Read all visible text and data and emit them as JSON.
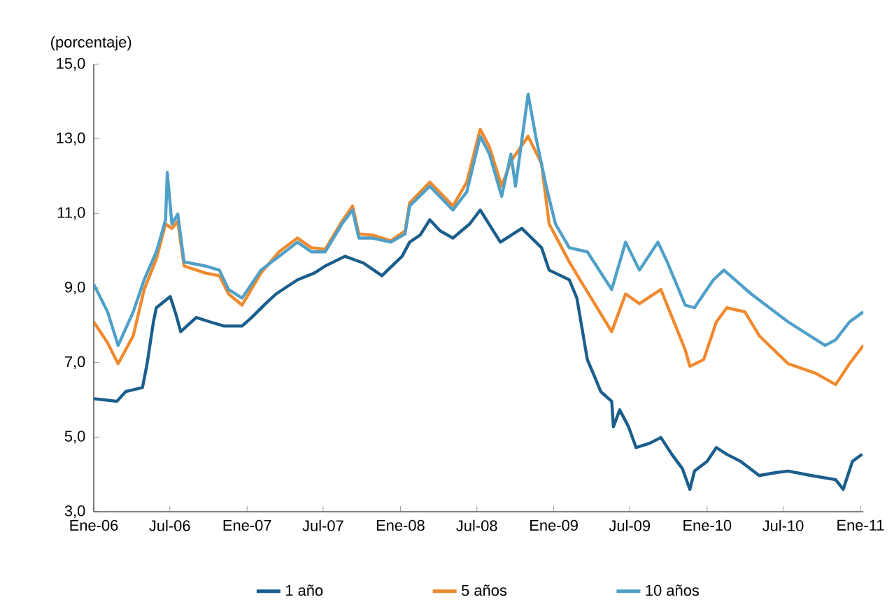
{
  "chart_data": {
    "type": "line",
    "ylabel": "(porcentaje)",
    "xlim": [
      "2006-01-01",
      "2011-01-08"
    ],
    "ylim": [
      3,
      15
    ],
    "xticks": [
      {
        "value": "2006-01-01",
        "label": "Ene-06"
      },
      {
        "value": "2006-07-01",
        "label": "Jul-06"
      },
      {
        "value": "2007-01-01",
        "label": "Ene-07"
      },
      {
        "value": "2007-07-01",
        "label": "Jul-07"
      },
      {
        "value": "2008-01-01",
        "label": "Ene-08"
      },
      {
        "value": "2008-07-01",
        "label": "Jul-08"
      },
      {
        "value": "2009-01-01",
        "label": "Ene-09"
      },
      {
        "value": "2009-07-01",
        "label": "Jul-09"
      },
      {
        "value": "2010-01-01",
        "label": "Ene-10"
      },
      {
        "value": "2010-07-01",
        "label": "Jul-10"
      },
      {
        "value": "2011-01-01",
        "label": "Ene-11"
      }
    ],
    "yticks": [
      {
        "value": 3,
        "label": "3,0"
      },
      {
        "value": 5,
        "label": "5,0"
      },
      {
        "value": 7,
        "label": "7,0"
      },
      {
        "value": 9,
        "label": "9,0"
      },
      {
        "value": 11,
        "label": "11,0"
      },
      {
        "value": 13,
        "label": "13,0"
      },
      {
        "value": 15,
        "label": "15,0"
      }
    ],
    "grid": false,
    "legend": "bottom",
    "marker": "none",
    "line_style": "solid",
    "series": [
      {
        "name": "1 año",
        "color": "#1a5e8c",
        "x": [
          "2006-01-01",
          "2006-01-27",
          "2006-02-25",
          "2006-03-18",
          "2006-04-27",
          "2006-05-08",
          "2006-05-23",
          "2006-05-30",
          "2006-07-02",
          "2006-07-16",
          "2006-07-27",
          "2006-09-02",
          "2006-10-05",
          "2006-11-07",
          "2006-12-20",
          "2007-01-12",
          "2007-02-14",
          "2007-03-11",
          "2007-05-01",
          "2007-06-10",
          "2007-07-06",
          "2007-08-22",
          "2007-10-05",
          "2007-11-18",
          "2008-01-05",
          "2008-01-23",
          "2008-02-17",
          "2008-03-11",
          "2008-04-05",
          "2008-05-05",
          "2008-06-14",
          "2008-07-09",
          "2008-08-26",
          "2008-10-16",
          "2008-12-02",
          "2008-12-20",
          "2009-02-07",
          "2009-02-25",
          "2009-03-22",
          "2009-04-09",
          "2009-04-23",
          "2009-05-19",
          "2009-05-23",
          "2009-06-07",
          "2009-06-28",
          "2009-07-16",
          "2009-08-18",
          "2009-09-13",
          "2009-10-09",
          "2009-11-03",
          "2009-11-21",
          "2009-12-02",
          "2010-01-01",
          "2010-01-23",
          "2010-02-17",
          "2010-03-22",
          "2010-05-05",
          "2010-06-14",
          "2010-07-13",
          "2010-09-06",
          "2010-11-03",
          "2010-11-21",
          "2010-12-13",
          "2011-01-05"
        ],
        "values": [
          6.03,
          6.0,
          5.96,
          6.22,
          6.33,
          6.97,
          8.09,
          8.47,
          8.77,
          8.28,
          7.83,
          8.21,
          8.09,
          7.98,
          7.98,
          8.21,
          8.58,
          8.84,
          9.22,
          9.4,
          9.59,
          9.85,
          9.67,
          9.33,
          9.85,
          10.23,
          10.42,
          10.83,
          10.53,
          10.34,
          10.72,
          11.09,
          10.23,
          10.6,
          10.08,
          9.48,
          9.22,
          8.73,
          7.08,
          6.6,
          6.22,
          5.96,
          5.28,
          5.73,
          5.28,
          4.72,
          4.84,
          4.99,
          4.54,
          4.16,
          3.6,
          4.09,
          4.35,
          4.72,
          4.54,
          4.35,
          3.97,
          4.05,
          4.09,
          3.97,
          3.86,
          3.6,
          4.35,
          4.54
        ]
      },
      {
        "name": "5 años",
        "color": "#ef8a2e",
        "x": [
          "2006-01-01",
          "2006-02-03",
          "2006-02-28",
          "2006-04-05",
          "2006-05-01",
          "2006-05-30",
          "2006-06-21",
          "2006-06-25",
          "2006-07-06",
          "2006-07-20",
          "2006-08-04",
          "2006-09-24",
          "2006-10-27",
          "2006-11-18",
          "2006-12-20",
          "2007-02-03",
          "2007-03-18",
          "2007-05-01",
          "2007-06-03",
          "2007-07-06",
          "2007-08-15",
          "2007-09-09",
          "2007-09-24",
          "2007-10-27",
          "2007-12-09",
          "2008-01-12",
          "2008-01-23",
          "2008-03-11",
          "2008-05-05",
          "2008-06-07",
          "2008-07-09",
          "2008-07-31",
          "2008-08-29",
          "2008-09-20",
          "2008-10-31",
          "2008-12-02",
          "2008-12-20",
          "2009-02-07",
          "2009-03-11",
          "2009-05-19",
          "2009-06-21",
          "2009-07-24",
          "2009-09-13",
          "2009-11-10",
          "2009-11-21",
          "2009-12-24",
          "2010-01-23",
          "2010-02-17",
          "2010-04-01",
          "2010-05-05",
          "2010-07-13",
          "2010-09-17",
          "2010-11-03",
          "2010-12-06",
          "2011-01-08"
        ],
        "values": [
          8.09,
          7.53,
          6.97,
          7.72,
          8.96,
          9.78,
          10.72,
          null,
          10.6,
          10.79,
          9.59,
          9.4,
          9.33,
          8.84,
          8.54,
          9.4,
          9.97,
          10.34,
          10.08,
          10.04,
          10.79,
          11.2,
          10.45,
          10.42,
          10.27,
          10.53,
          11.28,
          11.84,
          11.2,
          11.84,
          13.26,
          12.78,
          11.73,
          12.4,
          13.07,
          12.33,
          10.72,
          9.7,
          9.1,
          7.83,
          8.84,
          8.58,
          8.96,
          7.34,
          6.9,
          7.08,
          8.09,
          8.47,
          8.36,
          7.72,
          6.97,
          6.71,
          6.41,
          6.97,
          7.46
        ]
      },
      {
        "name": "10 años",
        "color": "#4fa0c8",
        "x": [
          "2006-01-01",
          "2006-02-03",
          "2006-02-28",
          "2006-04-05",
          "2006-05-01",
          "2006-05-30",
          "2006-06-21",
          "2006-06-25",
          "2006-07-06",
          "2006-07-20",
          "2006-08-04",
          "2006-09-24",
          "2006-10-27",
          "2006-11-18",
          "2006-12-20",
          "2007-02-03",
          "2007-03-18",
          "2007-05-01",
          "2007-06-03",
          "2007-07-06",
          "2007-08-15",
          "2007-09-09",
          "2007-09-24",
          "2007-10-27",
          "2007-12-09",
          "2008-01-12",
          "2008-01-23",
          "2008-03-11",
          "2008-05-05",
          "2008-06-07",
          "2008-07-09",
          "2008-07-31",
          "2008-08-29",
          "2008-09-20",
          "2008-10-01",
          "2008-10-31",
          "2008-11-18",
          "2008-12-13",
          "2009-01-05",
          "2009-02-07",
          "2009-03-22",
          "2009-05-19",
          "2009-06-21",
          "2009-07-24",
          "2009-09-06",
          "2009-09-28",
          "2009-11-10",
          "2009-12-02",
          "2010-01-16",
          "2010-02-10",
          "2010-04-16",
          "2010-07-13",
          "2010-10-09",
          "2010-11-03",
          "2010-12-06",
          "2011-01-08"
        ],
        "values": [
          9.1,
          8.36,
          7.46,
          8.36,
          9.22,
          9.97,
          10.83,
          12.1,
          10.72,
          10.98,
          9.7,
          9.59,
          9.48,
          8.96,
          8.73,
          9.48,
          9.85,
          10.23,
          9.97,
          9.97,
          10.72,
          11.09,
          10.34,
          10.34,
          10.23,
          10.45,
          11.2,
          11.73,
          11.09,
          11.58,
          13.07,
          12.59,
          11.46,
          12.59,
          11.73,
          14.2,
          13.07,
          11.73,
          10.72,
          10.08,
          9.97,
          8.96,
          10.23,
          9.48,
          10.23,
          9.7,
          8.54,
          8.47,
          9.22,
          9.48,
          8.84,
          8.09,
          7.46,
          7.61,
          8.09,
          8.36
        ]
      }
    ]
  }
}
